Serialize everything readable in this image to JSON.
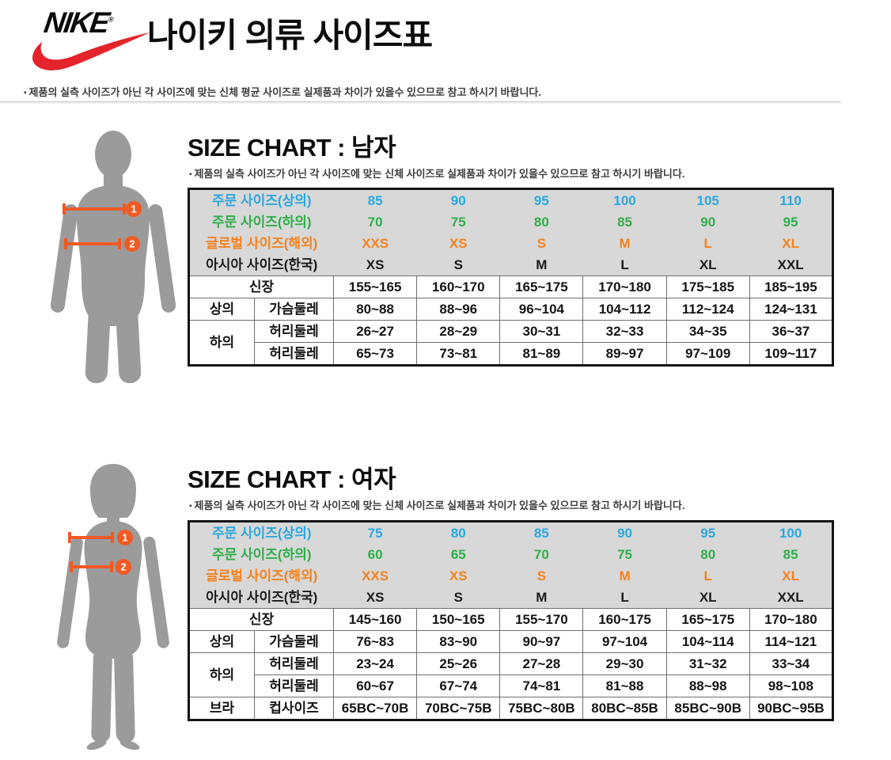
{
  "brand": {
    "wordmark": "NIKE",
    "registered_mark": "®"
  },
  "page_title": "나이키 의류 사이즈표",
  "bullet": "▪",
  "top_disclaimer": "제품의 실측 사이즈가 아닌 각 사이즈에 맞는 신체 평균 사이즈로 실제품과 차이가 있을수 있으므로 참고 하시기 바랍니다.",
  "figure_markers": [
    "1",
    "2"
  ],
  "icons": {
    "men_figure": "male-body-silhouette",
    "women_figure": "female-body-silhouette",
    "marker_badge": "orange-circle-number",
    "measure_arrow": "orange-horizontal-measure-line",
    "brand_icon": "nike-swoosh"
  },
  "colors": {
    "top_size": "#29A8E0",
    "bottom_size": "#2FAE4A",
    "global_size": "#F4821F",
    "asia_size": "#1A1A1A",
    "accent_orange": "#F15A24",
    "header_bg": "#D8D8D8",
    "swoosh_red": "#E4232B",
    "silhouette_gray": "#9B9B9B"
  },
  "sections": [
    {
      "id": "men",
      "heading": "SIZE CHART : 남자",
      "note": "제품의 실측 사이즈가 아닌 각 사이즈에 맞는 신체 사이즈로 실제품과 차이가 있을수 있으므로 참고 하시기 바랍니다.",
      "header_rows": [
        {
          "label": "주문 사이즈(상의)",
          "color_key": "top_size",
          "values": [
            "85",
            "90",
            "95",
            "100",
            "105",
            "110"
          ]
        },
        {
          "label": "주문 사이즈(하의)",
          "color_key": "bottom_size",
          "values": [
            "70",
            "75",
            "80",
            "85",
            "90",
            "95"
          ]
        },
        {
          "label": "글로벌 사이즈(해외)",
          "color_key": "global_size",
          "values": [
            "XXS",
            "XS",
            "S",
            "M",
            "L",
            "XL"
          ]
        },
        {
          "label": "아시아 사이즈(한국)",
          "color_key": "asia_size",
          "values": [
            "XS",
            "S",
            "M",
            "L",
            "XL",
            "XXL"
          ]
        }
      ],
      "body_rows": [
        {
          "label": "신장",
          "values": [
            "155~165",
            "160~170",
            "165~175",
            "170~180",
            "175~185",
            "185~195"
          ]
        },
        {
          "cat": "상의",
          "cat_rows": 1,
          "measure": "가슴둘레",
          "values": [
            "80~88",
            "88~96",
            "96~104",
            "104~112",
            "112~124",
            "124~131"
          ]
        },
        {
          "cat": "하의",
          "cat_rows": 2,
          "measure": "허리둘레",
          "values": [
            "26~27",
            "28~29",
            "30~31",
            "32~33",
            "34~35",
            "36~37"
          ]
        },
        {
          "measure": "허리둘레",
          "values": [
            "65~73",
            "73~81",
            "81~89",
            "89~97",
            "97~109",
            "109~117"
          ]
        }
      ]
    },
    {
      "id": "women",
      "heading": "SIZE CHART : 여자",
      "note": "제품의 실측 사이즈가 아닌 각 사이즈에 맞는 신체 사이즈로 실제품과 차이가 있을수 있으므로 참고 하시기 바랍니다.",
      "header_rows": [
        {
          "label": "주문 사이즈(상의)",
          "color_key": "top_size",
          "values": [
            "75",
            "80",
            "85",
            "90",
            "95",
            "100"
          ]
        },
        {
          "label": "주문 사이즈(하의)",
          "color_key": "bottom_size",
          "values": [
            "60",
            "65",
            "70",
            "75",
            "80",
            "85"
          ]
        },
        {
          "label": "글로벌 사이즈(해외)",
          "color_key": "global_size",
          "values": [
            "XXS",
            "XS",
            "S",
            "M",
            "L",
            "XL"
          ]
        },
        {
          "label": "아시아 사이즈(한국)",
          "color_key": "asia_size",
          "values": [
            "XS",
            "S",
            "M",
            "L",
            "XL",
            "XXL"
          ]
        }
      ],
      "body_rows": [
        {
          "label": "신장",
          "values": [
            "145~160",
            "150~165",
            "155~170",
            "160~175",
            "165~175",
            "170~180"
          ]
        },
        {
          "cat": "상의",
          "cat_rows": 1,
          "measure": "가슴둘레",
          "values": [
            "76~83",
            "83~90",
            "90~97",
            "97~104",
            "104~114",
            "114~121"
          ]
        },
        {
          "cat": "하의",
          "cat_rows": 2,
          "measure": "허리둘레",
          "values": [
            "23~24",
            "25~26",
            "27~28",
            "29~30",
            "31~32",
            "33~34"
          ]
        },
        {
          "measure": "허리둘레",
          "values": [
            "60~67",
            "67~74",
            "74~81",
            "81~88",
            "88~98",
            "98~108"
          ]
        },
        {
          "cat": "브라",
          "cat_rows": 1,
          "measure": "컵사이즈",
          "values": [
            "65BC~70B",
            "70BC~75B",
            "75BC~80B",
            "80BC~85B",
            "85BC~90B",
            "90BC~95B"
          ]
        }
      ]
    }
  ]
}
